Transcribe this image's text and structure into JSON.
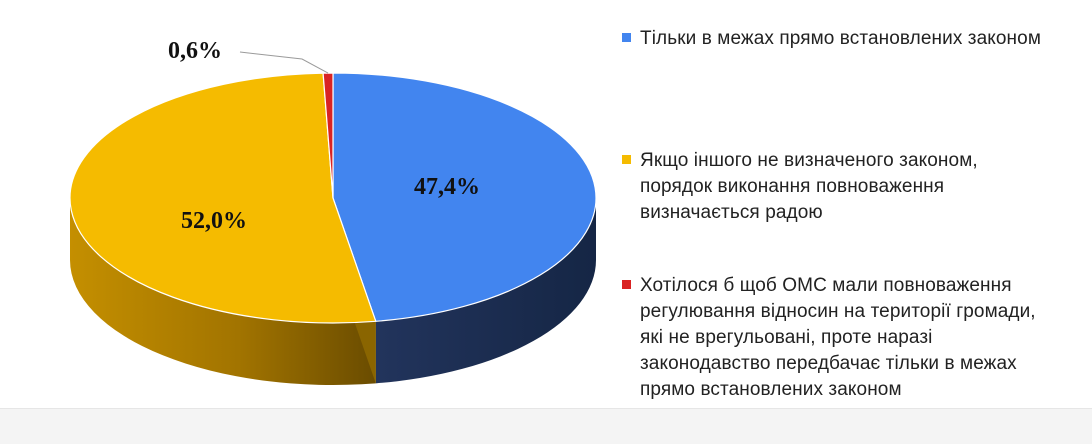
{
  "colors": {
    "series_a": "#4285ef",
    "series_b": "#f5bb00",
    "series_c": "#d92323"
  },
  "chart_data": {
    "type": "pie",
    "title": "",
    "style": "3d",
    "slices": [
      {
        "label": "Тільки в межах прямо встановлених законом",
        "value": 47.4,
        "value_label": "47,4%",
        "color": "#4285ef"
      },
      {
        "label": "Якщо іншого не визначеного законом,\nпорядок виконання повноваження\nвизначається радою",
        "value": 52.0,
        "value_label": "52,0%",
        "color": "#f5bb00"
      },
      {
        "label": "Хотілося б щоб ОМС мали повноваження\nрегулювання відносин на території громади,\nякі не врегульовані, проте наразі\nзаконодавство передбачає тільки в межах\nпрямо встановлених законом",
        "value": 0.6,
        "value_label": "0,6%",
        "color": "#d92323"
      }
    ],
    "legend_position": "right"
  }
}
